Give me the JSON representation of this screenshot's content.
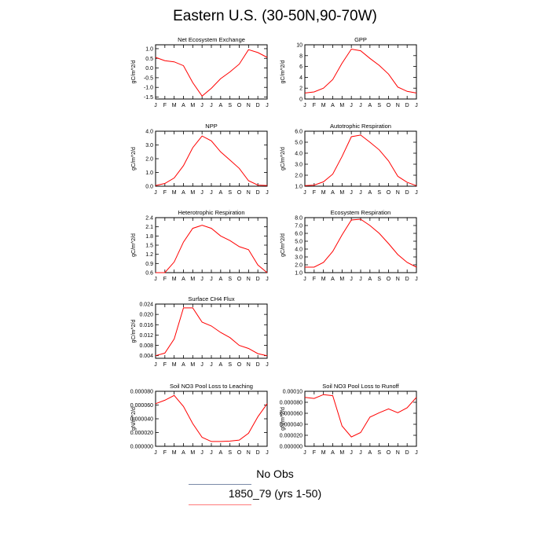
{
  "title": "Eastern U.S. (30-50N,90-70W)",
  "months": [
    "J",
    "F",
    "M",
    "A",
    "M",
    "J",
    "J",
    "A",
    "S",
    "O",
    "N",
    "D",
    "J"
  ],
  "legend": {
    "items": [
      {
        "label": "No Obs",
        "color": "#7a8aa8"
      },
      {
        "label": "1850_79 (yrs 1-50)",
        "color": "#ff7a7a"
      }
    ]
  },
  "series_color": "#ff0000",
  "chart_data": [
    {
      "type": "line",
      "title": "Net Ecosystem Exchange",
      "ylabel": "gC/m^2/d",
      "ylim": [
        -1.6,
        1.2
      ],
      "yticks": [
        -1.5,
        -1.0,
        -0.5,
        0.0,
        0.5,
        1.0
      ],
      "ytick_labels": [
        "-1.5",
        "-1.0",
        "-0.5",
        "0.0",
        "0.5",
        "1.0"
      ],
      "x": [
        "J",
        "F",
        "M",
        "A",
        "M",
        "J",
        "J",
        "A",
        "S",
        "O",
        "N",
        "D",
        "J"
      ],
      "values": [
        0.55,
        0.38,
        0.32,
        0.12,
        -0.75,
        -1.45,
        -1.05,
        -0.55,
        -0.2,
        0.2,
        0.95,
        0.8,
        0.55
      ]
    },
    {
      "type": "line",
      "title": "GPP",
      "ylabel": "gC/m^2/d",
      "ylim": [
        0,
        10
      ],
      "yticks": [
        0,
        2,
        4,
        6,
        8,
        10
      ],
      "ytick_labels": [
        "0",
        "2",
        "4",
        "6",
        "8",
        "10"
      ],
      "x": [
        "J",
        "F",
        "M",
        "A",
        "M",
        "J",
        "J",
        "A",
        "S",
        "O",
        "N",
        "D",
        "J"
      ],
      "values": [
        1.1,
        1.3,
        2.0,
        3.6,
        6.6,
        9.2,
        8.9,
        7.5,
        6.2,
        4.6,
        2.2,
        1.4,
        1.1
      ]
    },
    {
      "type": "line",
      "title": "NPP",
      "ylabel": "gC/m^2/d",
      "ylim": [
        0,
        4
      ],
      "yticks": [
        0,
        1,
        2,
        3,
        4
      ],
      "ytick_labels": [
        "0.0",
        "1.0",
        "2.0",
        "3.0",
        "4.0"
      ],
      "x": [
        "J",
        "F",
        "M",
        "A",
        "M",
        "J",
        "J",
        "A",
        "S",
        "O",
        "N",
        "D",
        "J"
      ],
      "values": [
        0.05,
        0.2,
        0.6,
        1.5,
        2.8,
        3.65,
        3.3,
        2.5,
        1.9,
        1.3,
        0.4,
        0.08,
        0.05
      ]
    },
    {
      "type": "line",
      "title": "Autotrophic Respiration",
      "ylabel": "gC/m^2/d",
      "ylim": [
        1,
        6
      ],
      "yticks": [
        1,
        2,
        3,
        4,
        5,
        6
      ],
      "ytick_labels": [
        "1.0",
        "2.0",
        "3.0",
        "4.0",
        "5.0",
        "6.0"
      ],
      "x": [
        "J",
        "F",
        "M",
        "A",
        "M",
        "J",
        "J",
        "A",
        "S",
        "O",
        "N",
        "D",
        "J"
      ],
      "values": [
        1.05,
        1.1,
        1.4,
        2.1,
        3.7,
        5.5,
        5.65,
        5.0,
        4.3,
        3.3,
        1.9,
        1.35,
        1.05
      ]
    },
    {
      "type": "line",
      "title": "Heterotrophic Respiration",
      "ylabel": "gC/m^2/d",
      "ylim": [
        0.6,
        2.4
      ],
      "yticks": [
        0.6,
        0.9,
        1.2,
        1.5,
        1.8,
        2.1,
        2.4
      ],
      "ytick_labels": [
        "0.6",
        "0.9",
        "1.2",
        "1.5",
        "1.8",
        "2.1",
        "2.4"
      ],
      "x": [
        "J",
        "F",
        "M",
        "A",
        "M",
        "J",
        "J",
        "A",
        "S",
        "O",
        "N",
        "D",
        "J"
      ],
      "values": [
        0.6,
        0.6,
        0.95,
        1.6,
        2.05,
        2.15,
        2.05,
        1.8,
        1.65,
        1.45,
        1.35,
        0.85,
        0.6
      ]
    },
    {
      "type": "line",
      "title": "Ecosystem Respiration",
      "ylabel": "gC/m^2/d",
      "ylim": [
        1,
        8
      ],
      "yticks": [
        1,
        2,
        3,
        4,
        5,
        6,
        7,
        8
      ],
      "ytick_labels": [
        "1.0",
        "2.0",
        "3.0",
        "4.0",
        "5.0",
        "6.0",
        "7.0",
        "8.0"
      ],
      "x": [
        "J",
        "F",
        "M",
        "A",
        "M",
        "J",
        "J",
        "A",
        "S",
        "O",
        "N",
        "D",
        "J"
      ],
      "values": [
        1.7,
        1.7,
        2.3,
        3.7,
        5.8,
        7.7,
        7.8,
        7.0,
        6.0,
        4.7,
        3.3,
        2.3,
        1.7
      ]
    },
    {
      "type": "line",
      "title": "Surface CH4 Flux",
      "ylabel": "gC/m^2/d",
      "ylim": [
        0.003,
        0.024
      ],
      "yticks": [
        0.004,
        0.008,
        0.012,
        0.016,
        0.02,
        0.024
      ],
      "ytick_labels": [
        "0.004",
        "0.008",
        "0.012",
        "0.016",
        "0.020",
        "0.024"
      ],
      "x": [
        "J",
        "F",
        "M",
        "A",
        "M",
        "J",
        "J",
        "A",
        "S",
        "O",
        "N",
        "D",
        "J"
      ],
      "values": [
        0.004,
        0.005,
        0.0105,
        0.0225,
        0.0225,
        0.017,
        0.0155,
        0.013,
        0.011,
        0.008,
        0.0068,
        0.0048,
        0.004
      ]
    },
    {
      "type": "line",
      "title": "Soil NO3 Pool Loss to Leaching",
      "ylabel": "gN/m^2/d",
      "ylim": [
        0,
        8e-05
      ],
      "yticks": [
        0,
        2e-05,
        4e-05,
        6e-05,
        8e-05
      ],
      "ytick_labels": [
        "0.000000",
        "0.000020",
        "0.000040",
        "0.000060",
        "0.000080"
      ],
      "x": [
        "J",
        "F",
        "M",
        "A",
        "M",
        "J",
        "J",
        "A",
        "S",
        "O",
        "N",
        "D",
        "J"
      ],
      "values": [
        6.2e-05,
        6.7e-05,
        7.4e-05,
        5.8e-05,
        3.3e-05,
        1.3e-05,
        7e-06,
        7e-06,
        7.5e-06,
        9e-06,
        1.9e-05,
        4.3e-05,
        6.2e-05
      ]
    },
    {
      "type": "line",
      "title": "Soil NO3 Pool Loss to Runoff",
      "ylabel": "gN/m^2/d",
      "ylim": [
        0,
        0.0001
      ],
      "yticks": [
        0,
        2e-05,
        4e-05,
        6e-05,
        8e-05,
        0.0001
      ],
      "ytick_labels": [
        "0.000000",
        "0.000020",
        "0.000040",
        "0.000060",
        "0.000080",
        "0.00010"
      ],
      "x": [
        "J",
        "F",
        "M",
        "A",
        "M",
        "J",
        "J",
        "A",
        "S",
        "O",
        "N",
        "D",
        "J"
      ],
      "values": [
        8.9e-05,
        8.7e-05,
        9.4e-05,
        9.2e-05,
        3.7e-05,
        1.7e-05,
        2.5e-05,
        5.3e-05,
        6.1e-05,
        6.8e-05,
        6.1e-05,
        7e-05,
        8.9e-05
      ]
    }
  ]
}
